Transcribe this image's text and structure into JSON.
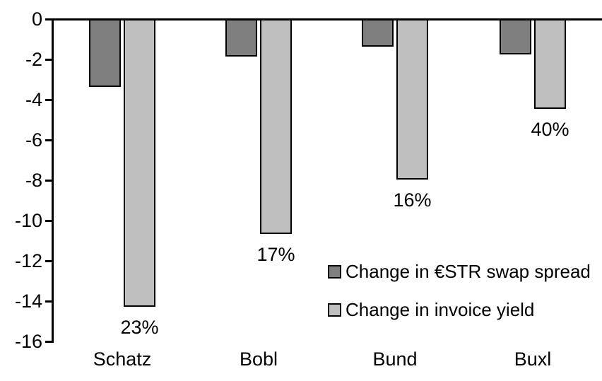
{
  "chart_data": {
    "type": "bar",
    "title": "",
    "orientation": "vertical",
    "categories": [
      "Schatz",
      "Bobl",
      "Bund",
      "Buxl"
    ],
    "series": [
      {
        "name": "Change in €STR swap spread",
        "color": "#7f7f7f",
        "values": [
          -3.3,
          -1.8,
          -1.3,
          -1.7
        ]
      },
      {
        "name": "Change in invoice yield",
        "color": "#bfbfbf",
        "values": [
          -14.2,
          -10.6,
          -7.9,
          -4.4
        ],
        "data_labels": [
          "23%",
          "17%",
          "16%",
          "40%"
        ]
      }
    ],
    "y_axis": {
      "min": -16,
      "max": 0,
      "tick_step": 2,
      "tick_labels": [
        "0",
        "-2",
        "-4",
        "-6",
        "-8",
        "-10",
        "-12",
        "-14",
        "-16"
      ]
    },
    "legend": {
      "position": "inside-middle-right",
      "entries": [
        "Change in €STR swap spread",
        "Change in invoice yield"
      ]
    },
    "grid": false,
    "colors": {
      "axis": "#000000",
      "text": "#000000",
      "background": "#ffffff"
    }
  }
}
